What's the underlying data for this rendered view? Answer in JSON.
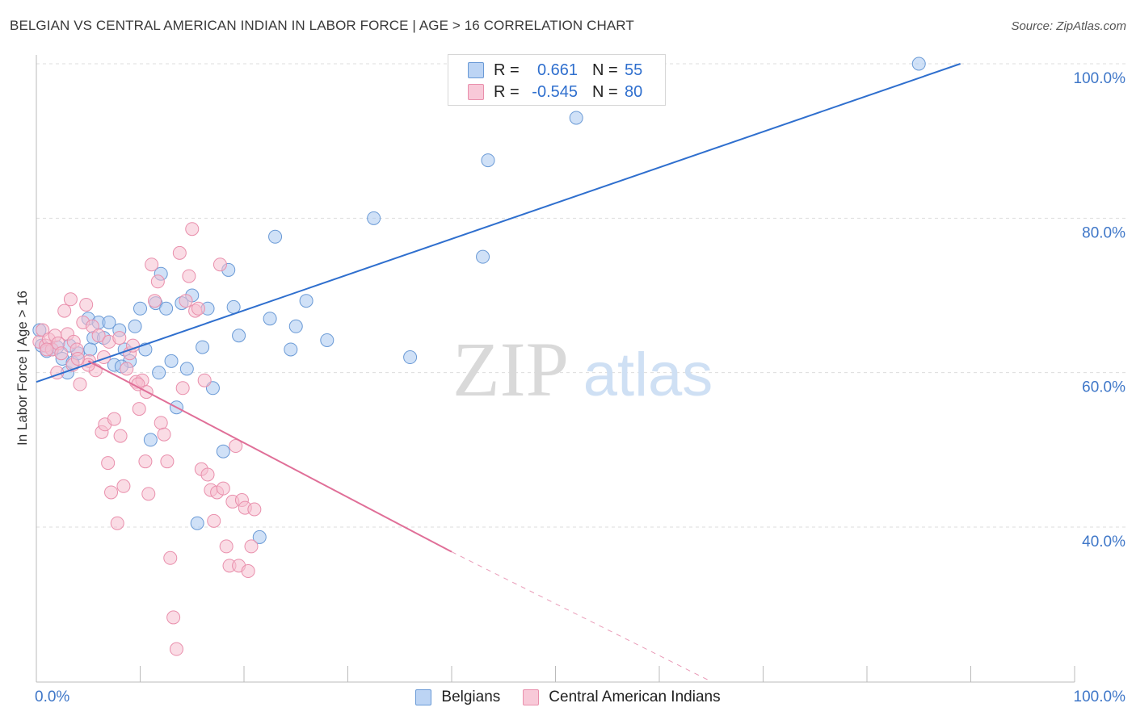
{
  "title": "BELGIAN VS CENTRAL AMERICAN INDIAN IN LABOR FORCE | AGE > 16 CORRELATION CHART",
  "source": "Source: ZipAtlas.com",
  "watermark": {
    "zip": "ZIP",
    "atlas": "atlas"
  },
  "colors": {
    "belgian_fill": "#a9c8f0",
    "belgian_stroke": "#6a9ad6",
    "belgian_line": "#2f6fce",
    "cai_fill": "#f6bfd0",
    "cai_stroke": "#e98fac",
    "cai_line": "#e06f98",
    "axis_text": "#3f77c8",
    "grid": "#dddddd"
  },
  "legend": {
    "rows": [
      {
        "r_label": "R =",
        "r_value": "0.661",
        "n_label": "N =",
        "n_value": "55"
      },
      {
        "r_label": "R =",
        "r_value": "-0.545",
        "n_label": "N =",
        "n_value": "80"
      }
    ]
  },
  "bottom_legend": {
    "belgians": "Belgians",
    "cai": "Central American Indians"
  },
  "chart_data": {
    "type": "scatter",
    "title": "BELGIAN VS CENTRAL AMERICAN INDIAN IN LABOR FORCE | AGE > 16 CORRELATION CHART",
    "xlabel": "",
    "ylabel": "In Labor Force | Age > 16",
    "xlim": [
      0,
      100
    ],
    "ylim": [
      20,
      102
    ],
    "x_tick_labels": [
      "0.0%",
      "100.0%"
    ],
    "y_ticks": [
      40,
      60,
      80,
      100
    ],
    "y_tick_labels": [
      "40.0%",
      "60.0%",
      "80.0%",
      "100.0%"
    ],
    "grid": true,
    "legend_position": "top-center",
    "series": [
      {
        "name": "Belgians",
        "R": 0.661,
        "N": 55,
        "trend": {
          "x0": 0,
          "y0": 58.8,
          "x1": 89,
          "y1": 100
        },
        "points": [
          [
            0.5,
            63.5
          ],
          [
            1.0,
            62.8
          ],
          [
            1.5,
            63.0
          ],
          [
            2.0,
            63.3
          ],
          [
            2.5,
            61.8
          ],
          [
            3.0,
            60.0
          ],
          [
            3.5,
            61.3
          ],
          [
            4.0,
            62.5
          ],
          [
            5.0,
            67.0
          ],
          [
            5.5,
            64.5
          ],
          [
            6.0,
            66.5
          ],
          [
            6.5,
            64.5
          ],
          [
            7.0,
            66.5
          ],
          [
            7.5,
            61.0
          ],
          [
            8.0,
            65.5
          ],
          [
            8.5,
            63.0
          ],
          [
            9.0,
            61.5
          ],
          [
            9.5,
            66.0
          ],
          [
            10.0,
            68.3
          ],
          [
            10.5,
            63.0
          ],
          [
            11.0,
            51.3
          ],
          [
            11.5,
            69.0
          ],
          [
            12.0,
            72.8
          ],
          [
            12.5,
            68.3
          ],
          [
            13.0,
            61.5
          ],
          [
            13.5,
            55.5
          ],
          [
            14.0,
            69.0
          ],
          [
            14.5,
            60.5
          ],
          [
            15.0,
            70.0
          ],
          [
            15.5,
            40.5
          ],
          [
            16.0,
            63.3
          ],
          [
            16.5,
            68.3
          ],
          [
            17.0,
            58.0
          ],
          [
            18.0,
            49.8
          ],
          [
            18.5,
            73.3
          ],
          [
            19.0,
            68.5
          ],
          [
            19.5,
            64.8
          ],
          [
            21.5,
            38.7
          ],
          [
            22.5,
            67.0
          ],
          [
            23.0,
            77.6
          ],
          [
            24.5,
            63.0
          ],
          [
            25.0,
            66.0
          ],
          [
            26.0,
            69.3
          ],
          [
            28.0,
            64.2
          ],
          [
            32.5,
            80.0
          ],
          [
            36.0,
            62.0
          ],
          [
            43.0,
            75.0
          ],
          [
            43.5,
            87.5
          ],
          [
            52.0,
            93.0
          ],
          [
            85.0,
            100.0
          ],
          [
            0.3,
            65.5
          ],
          [
            3.2,
            63.5
          ],
          [
            5.2,
            63.0
          ],
          [
            8.2,
            60.8
          ],
          [
            11.8,
            60.0
          ]
        ]
      },
      {
        "name": "Central American Indians",
        "R": -0.545,
        "N": 80,
        "trend": {
          "x0": 5,
          "y0": 61.5,
          "x1": 40,
          "y1": 36.8
        },
        "trend_dashed": {
          "x0": 40,
          "y0": 36.8,
          "x1": 65,
          "y1": 20
        },
        "points": [
          [
            0.3,
            64.0
          ],
          [
            0.6,
            65.5
          ],
          [
            0.9,
            63.5
          ],
          [
            1.2,
            64.3
          ],
          [
            1.5,
            63.0
          ],
          [
            1.8,
            64.8
          ],
          [
            2.1,
            63.8
          ],
          [
            2.4,
            62.5
          ],
          [
            2.7,
            68.0
          ],
          [
            3.0,
            65.0
          ],
          [
            3.3,
            69.5
          ],
          [
            3.6,
            64.0
          ],
          [
            3.9,
            63.0
          ],
          [
            4.2,
            58.5
          ],
          [
            4.5,
            66.5
          ],
          [
            4.8,
            68.8
          ],
          [
            5.1,
            61.5
          ],
          [
            5.4,
            66.0
          ],
          [
            5.7,
            60.3
          ],
          [
            6.0,
            64.8
          ],
          [
            6.3,
            52.3
          ],
          [
            6.6,
            53.3
          ],
          [
            6.9,
            48.3
          ],
          [
            7.2,
            44.5
          ],
          [
            7.5,
            54.0
          ],
          [
            7.8,
            40.5
          ],
          [
            8.1,
            51.8
          ],
          [
            8.4,
            45.3
          ],
          [
            8.7,
            60.5
          ],
          [
            9.0,
            62.5
          ],
          [
            9.3,
            63.5
          ],
          [
            9.6,
            58.8
          ],
          [
            9.9,
            55.3
          ],
          [
            10.2,
            59.0
          ],
          [
            10.5,
            48.5
          ],
          [
            10.8,
            44.3
          ],
          [
            11.1,
            74.0
          ],
          [
            11.4,
            69.3
          ],
          [
            11.7,
            71.8
          ],
          [
            12.0,
            53.5
          ],
          [
            12.3,
            52.0
          ],
          [
            12.6,
            48.5
          ],
          [
            12.9,
            36.0
          ],
          [
            13.2,
            28.3
          ],
          [
            13.5,
            24.2
          ],
          [
            13.8,
            75.5
          ],
          [
            14.1,
            58.0
          ],
          [
            14.4,
            69.3
          ],
          [
            14.7,
            72.5
          ],
          [
            15.0,
            78.6
          ],
          [
            15.3,
            68.0
          ],
          [
            15.6,
            68.3
          ],
          [
            15.9,
            47.5
          ],
          [
            16.2,
            59.0
          ],
          [
            16.5,
            46.8
          ],
          [
            16.8,
            44.8
          ],
          [
            17.1,
            40.8
          ],
          [
            17.4,
            44.5
          ],
          [
            17.7,
            74.0
          ],
          [
            18.0,
            45.0
          ],
          [
            18.3,
            37.5
          ],
          [
            18.6,
            35.0
          ],
          [
            18.9,
            43.3
          ],
          [
            19.2,
            50.5
          ],
          [
            19.5,
            35.0
          ],
          [
            19.8,
            43.5
          ],
          [
            20.1,
            42.5
          ],
          [
            20.4,
            34.3
          ],
          [
            20.7,
            37.5
          ],
          [
            21.0,
            42.3
          ],
          [
            5.0,
            61.0
          ],
          [
            6.5,
            62.0
          ],
          [
            7.0,
            64.0
          ],
          [
            2.0,
            60.0
          ],
          [
            3.5,
            61.0
          ],
          [
            4.0,
            61.8
          ],
          [
            1.0,
            63.0
          ],
          [
            8.0,
            64.5
          ],
          [
            9.8,
            58.5
          ],
          [
            10.6,
            57.5
          ]
        ]
      }
    ]
  }
}
